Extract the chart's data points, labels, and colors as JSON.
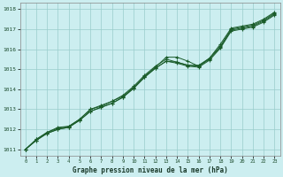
{
  "title": "Graphe pression niveau de la mer (hPa)",
  "bg_color": "#cceef0",
  "grid_color": "#99cccc",
  "line_color": "#1a5c2a",
  "xlim": [
    -0.5,
    23.5
  ],
  "ylim": [
    1010.7,
    1018.3
  ],
  "yticks": [
    1011,
    1012,
    1013,
    1014,
    1015,
    1016,
    1017,
    1018
  ],
  "xticks": [
    0,
    1,
    2,
    3,
    4,
    5,
    6,
    7,
    8,
    9,
    10,
    11,
    12,
    13,
    14,
    15,
    16,
    17,
    18,
    19,
    20,
    21,
    22,
    23
  ],
  "series": [
    [
      1011.0,
      1011.45,
      1011.8,
      1012.0,
      1012.1,
      1012.45,
      1012.9,
      1013.1,
      1013.3,
      1013.6,
      1014.05,
      1014.6,
      1015.05,
      1015.4,
      1015.3,
      1015.15,
      1015.1,
      1015.45,
      1016.05,
      1016.9,
      1017.0,
      1017.1,
      1017.35,
      1017.7
    ],
    [
      1011.0,
      1011.45,
      1011.8,
      1012.0,
      1012.1,
      1012.45,
      1012.9,
      1013.1,
      1013.3,
      1013.6,
      1014.05,
      1014.6,
      1015.05,
      1015.4,
      1015.35,
      1015.2,
      1015.15,
      1015.5,
      1016.1,
      1016.95,
      1017.05,
      1017.15,
      1017.4,
      1017.75
    ],
    [
      1011.0,
      1011.5,
      1011.85,
      1012.05,
      1012.15,
      1012.5,
      1013.0,
      1013.2,
      1013.4,
      1013.7,
      1014.15,
      1014.7,
      1015.15,
      1015.5,
      1015.35,
      1015.2,
      1015.2,
      1015.55,
      1016.15,
      1017.0,
      1017.1,
      1017.2,
      1017.45,
      1017.8
    ],
    [
      1011.0,
      1011.5,
      1011.85,
      1012.1,
      1012.15,
      1012.5,
      1013.0,
      1013.15,
      1013.4,
      1013.65,
      1014.1,
      1014.65,
      1015.1,
      1015.6,
      1015.6,
      1015.4,
      1015.15,
      1015.55,
      1016.25,
      1017.05,
      1017.15,
      1017.25,
      1017.5,
      1017.85
    ]
  ]
}
